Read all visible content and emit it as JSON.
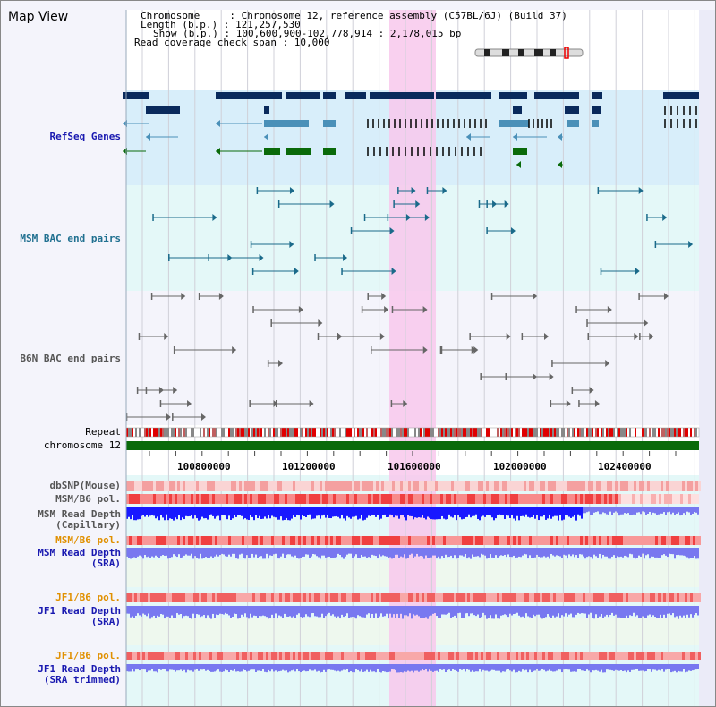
{
  "header": {
    "title": "Map View",
    "chromosome_line": "Chromosome     : Chromosome 12, reference assembly (C57BL/6J) (Build 37)",
    "length_line": "Length (b.p.) : 121,257,530",
    "show_line": "Show (b.p.) : 100,600,900-102,778,914 : 2,178,015 bp",
    "coverage_line": "Read coverage check span : 10,000"
  },
  "tracks": {
    "refseq": "RefSeq Genes",
    "msm_bac": "MSM BAC end pairs",
    "b6n_bac": "B6N BAC end pairs",
    "repeat": "Repeat",
    "chromosome": "chromosome 12",
    "dbsnp": "dbSNP(Mouse)",
    "msm_pol_1": "MSM/B6 pol.",
    "msm_depth_cap_1": "MSM Read Depth",
    "msm_depth_cap_2": "(Capillary)",
    "msm_pol_2": "MSM/B6 pol.",
    "msm_depth_sra_1": "MSM Read Depth",
    "msm_depth_sra_2": "(SRA)",
    "jf1_pol_1": "JF1/B6 pol.",
    "jf1_depth_sra_1": "JF1 Read Depth",
    "jf1_depth_sra_2": "(SRA)",
    "jf1_pol_2": "JF1/B6 pol.",
    "jf1_depth_trim_1": "JF1 Read Depth",
    "jf1_depth_trim_2": "(SRA trimmed)"
  },
  "axis": {
    "ticks": [
      "100800000",
      "101200000",
      "101600000",
      "102000000",
      "102400000"
    ]
  },
  "colors": {
    "refseq_dark": "#0a2a5c",
    "refseq_light": "#4a90b8",
    "refseq_green": "#0a6a0a",
    "msm_bac": "#1a6a8a",
    "b6n_bac": "#666666",
    "highlight": "#f8c8ec",
    "chromosome_bar": "#0a6a0a",
    "depth_blue": "#1818ff",
    "depth_light": "#7878f0",
    "pol_red": "#f04040"
  }
}
